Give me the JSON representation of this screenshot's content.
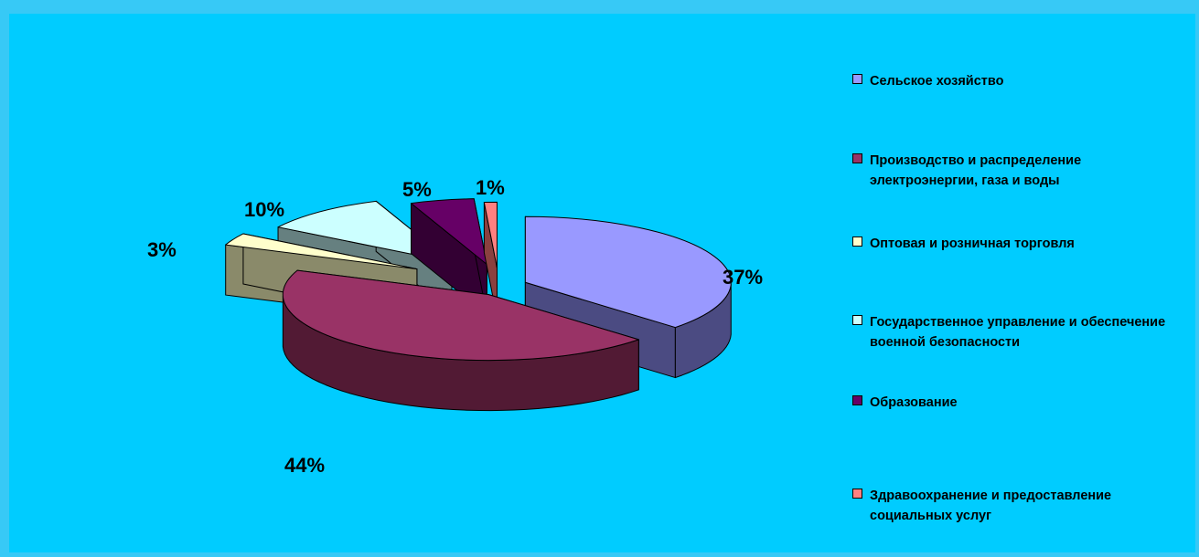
{
  "chart_data": {
    "type": "pie",
    "title": "",
    "slices": [
      {
        "label": "Сельское хозяйство",
        "value": 37,
        "value_label": "37%",
        "top_color": "#9999ff",
        "side_color": "#4b4b82"
      },
      {
        "label": "Производство и распределение электроэнергии, газа и воды",
        "value": 44,
        "value_label": "44%",
        "top_color": "#993366",
        "side_color": "#521a34"
      },
      {
        "label": "Оптовая и розничная торговля",
        "value": 3,
        "value_label": "3%",
        "top_color": "#ffffcc",
        "side_color": "#8a8a6a"
      },
      {
        "label": "Государственное управление и обеспечение военной безопасности",
        "value": 10,
        "value_label": "10%",
        "top_color": "#ccffff",
        "side_color": "#668080"
      },
      {
        "label": "Образование",
        "value": 5,
        "value_label": "5%",
        "top_color": "#660066",
        "side_color": "#330033"
      },
      {
        "label": "Здравоохранение и предоставление социальных услуг",
        "value": 1,
        "value_label": "1%",
        "top_color": "#ff8080",
        "side_color": "#8a4040"
      }
    ],
    "legend_position": "right",
    "style": "3d-exploded"
  }
}
